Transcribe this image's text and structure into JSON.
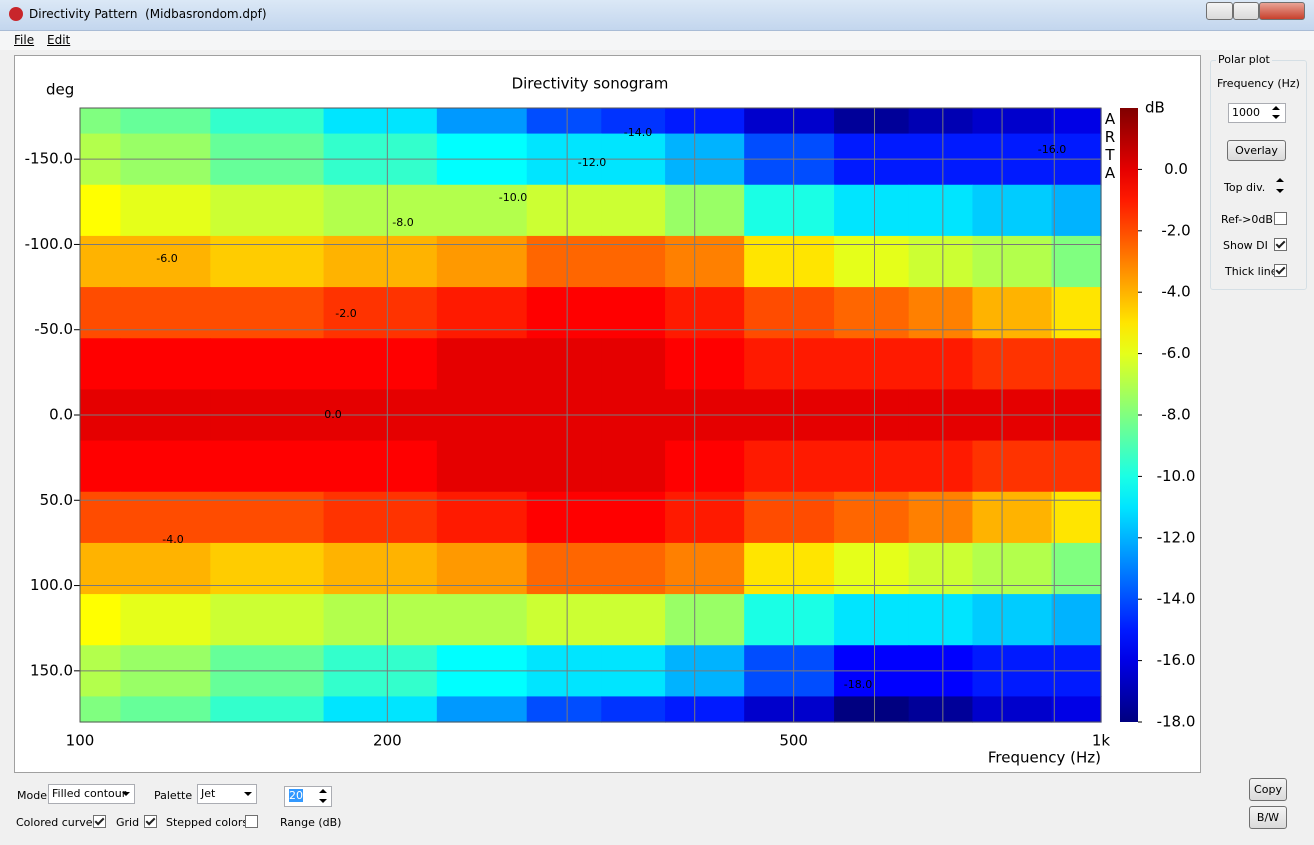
{
  "window": {
    "title": "Directivity Pattern  (Midbasrondom.dpf)",
    "menu": [
      "File",
      "Edit"
    ]
  },
  "chart_data": {
    "type": "heatmap",
    "title": "Directivity sonogram",
    "y_label": "deg",
    "x_label": "Frequency (Hz)",
    "colorbar_label": "dB",
    "watermark": "ARTA",
    "colormap": "jet",
    "xscale": "log",
    "grid": true,
    "x": [
      100,
      120,
      150,
      200,
      250,
      300,
      350,
      400,
      500,
      600,
      700,
      800,
      1000
    ],
    "y": [
      -180,
      -150,
      -120,
      -90,
      -60,
      -30,
      0,
      30,
      60,
      90,
      120,
      150,
      180
    ],
    "z": [
      [
        -8,
        -8.5,
        -9.5,
        -11,
        -12.5,
        -14,
        -14.5,
        -15,
        -16.5,
        -17.5,
        -17,
        -16.5,
        -16
      ],
      [
        -7,
        -7.5,
        -8.5,
        -9.5,
        -10.5,
        -11,
        -11,
        -12,
        -14,
        -15,
        -15,
        -15,
        -15
      ],
      [
        -5.5,
        -6,
        -6.5,
        -7,
        -7,
        -6.5,
        -6.5,
        -7.5,
        -10,
        -11,
        -11,
        -11.5,
        -12
      ],
      [
        -4,
        -4,
        -4.5,
        -4,
        -3.5,
        -2.5,
        -2.5,
        -3,
        -5,
        -6,
        -6.5,
        -7,
        -8
      ],
      [
        -2,
        -2,
        -2,
        -1.5,
        -1,
        -0.5,
        -0.5,
        -1,
        -2,
        -2.5,
        -3,
        -4,
        -5
      ],
      [
        -0.5,
        -0.5,
        -0.5,
        -0.5,
        0,
        0,
        0,
        -0.5,
        -1,
        -1,
        -1,
        -1.5,
        -1.5
      ],
      [
        0,
        0,
        0,
        0,
        0,
        0,
        0,
        0,
        0,
        0,
        0,
        0,
        0
      ],
      [
        -0.5,
        -0.5,
        -0.5,
        -0.5,
        0,
        0,
        0,
        -0.5,
        -1,
        -1,
        -1,
        -1.5,
        -1.5
      ],
      [
        -2,
        -2,
        -2,
        -1.5,
        -1,
        -0.5,
        -0.5,
        -1,
        -2,
        -2.5,
        -3,
        -4,
        -5
      ],
      [
        -4,
        -4,
        -4.5,
        -4,
        -3.5,
        -2.5,
        -2.5,
        -3,
        -5,
        -6,
        -6.5,
        -7,
        -8
      ],
      [
        -5.5,
        -6,
        -6.5,
        -7,
        -7,
        -6.5,
        -6.5,
        -7.5,
        -10,
        -11,
        -11,
        -11.5,
        -12
      ],
      [
        -7,
        -7.5,
        -8.5,
        -9.5,
        -10.5,
        -11,
        -11,
        -12,
        -14,
        -15.5,
        -15.5,
        -15,
        -15
      ],
      [
        -8,
        -8.5,
        -9.5,
        -11,
        -12.5,
        -14,
        -14.5,
        -15,
        -16.5,
        -18,
        -17.5,
        -16.5,
        -16
      ]
    ],
    "xlim": [
      100,
      1000
    ],
    "ylim": [
      -180,
      180
    ],
    "xticks": [
      100,
      200,
      500,
      {
        "value": 1000,
        "label": "1k"
      }
    ],
    "xminor": [
      300,
      400,
      600,
      700,
      800,
      900
    ],
    "yticks": [
      {
        "value": -150,
        "label": "-150.0"
      },
      {
        "value": -100,
        "label": "-100.0"
      },
      {
        "value": -50,
        "label": "-50.0"
      },
      {
        "value": 0,
        "label": "0.0"
      },
      {
        "value": 50,
        "label": "50.0"
      },
      {
        "value": 100,
        "label": "100.0"
      },
      {
        "value": 150,
        "label": "150.0"
      }
    ],
    "clim": [
      -18,
      2
    ],
    "cticks": [
      {
        "value": 0,
        "label": "0.0"
      },
      {
        "value": -2,
        "label": "-2.0"
      },
      {
        "value": -4,
        "label": "-4.0"
      },
      {
        "value": -6,
        "label": "-6.0"
      },
      {
        "value": -8,
        "label": "-8.0"
      },
      {
        "value": -10,
        "label": "-10.0"
      },
      {
        "value": -12,
        "label": "-12.0"
      },
      {
        "value": -14,
        "label": "-14.0"
      },
      {
        "value": -16,
        "label": "-16.0"
      },
      {
        "value": -18,
        "label": "-18.0"
      }
    ],
    "contour_labels": [
      "-14.0",
      "-12.0",
      "-10.0",
      "-8.0",
      "-6.0",
      "-2.0",
      "0.0",
      "-4.0",
      "-18.0",
      "-16.0"
    ]
  },
  "polar_panel": {
    "title": "Polar plot",
    "frequency_label": "Frequency (Hz)",
    "frequency": 1000,
    "overlay": "Overlay",
    "top_div": "Top div.",
    "ref_0db": {
      "label": "Ref->0dB",
      "checked": false
    },
    "show_di": {
      "label": "Show DI",
      "checked": true
    },
    "thick_line": {
      "label": "Thick line",
      "checked": true
    }
  },
  "controls": {
    "mode_label": "Mode",
    "mode": "Filled contour",
    "palette_label": "Palette",
    "palette": "Jet",
    "range": 20,
    "range_label": "Range (dB)",
    "colored_curves": {
      "label": "Colored curves",
      "checked": true
    },
    "grid": {
      "label": "Grid",
      "checked": true
    },
    "stepped_colors": {
      "label": "Stepped colors",
      "checked": false
    },
    "copy": "Copy",
    "bw": "B/W"
  }
}
